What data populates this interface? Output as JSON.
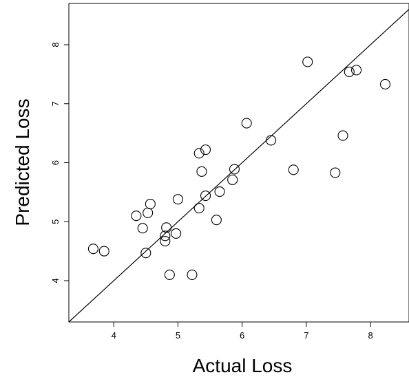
{
  "chart_data": {
    "type": "scatter",
    "title": "",
    "xlabel": "Actual Loss",
    "ylabel": "Predicted Loss",
    "xlim": [
      3.3,
      8.6
    ],
    "ylim": [
      3.3,
      8.7
    ],
    "x_ticks": [
      4,
      5,
      6,
      7,
      8
    ],
    "y_ticks": [
      4,
      5,
      6,
      7,
      8
    ],
    "grid": false,
    "reference_line": {
      "slope": 1,
      "intercept": 0
    },
    "series": [
      {
        "points": [
          {
            "x": 3.68,
            "y": 4.54
          },
          {
            "x": 3.85,
            "y": 4.5
          },
          {
            "x": 4.35,
            "y": 5.1
          },
          {
            "x": 4.45,
            "y": 4.89
          },
          {
            "x": 4.5,
            "y": 4.47
          },
          {
            "x": 4.53,
            "y": 5.15
          },
          {
            "x": 4.57,
            "y": 5.3
          },
          {
            "x": 4.8,
            "y": 4.67
          },
          {
            "x": 4.8,
            "y": 4.76
          },
          {
            "x": 4.82,
            "y": 4.9
          },
          {
            "x": 4.87,
            "y": 4.1
          },
          {
            "x": 4.97,
            "y": 4.8
          },
          {
            "x": 5.0,
            "y": 5.38
          },
          {
            "x": 5.22,
            "y": 4.1
          },
          {
            "x": 5.33,
            "y": 5.23
          },
          {
            "x": 5.33,
            "y": 6.16
          },
          {
            "x": 5.37,
            "y": 5.85
          },
          {
            "x": 5.43,
            "y": 6.22
          },
          {
            "x": 5.43,
            "y": 5.44
          },
          {
            "x": 5.6,
            "y": 5.03
          },
          {
            "x": 5.65,
            "y": 5.51
          },
          {
            "x": 5.85,
            "y": 5.71
          },
          {
            "x": 5.88,
            "y": 5.89
          },
          {
            "x": 6.07,
            "y": 6.67
          },
          {
            "x": 6.45,
            "y": 6.38
          },
          {
            "x": 6.8,
            "y": 5.88
          },
          {
            "x": 7.02,
            "y": 7.71
          },
          {
            "x": 7.45,
            "y": 5.83
          },
          {
            "x": 7.57,
            "y": 6.46
          },
          {
            "x": 7.67,
            "y": 7.54
          },
          {
            "x": 7.78,
            "y": 7.57
          },
          {
            "x": 8.23,
            "y": 7.33
          }
        ]
      }
    ]
  }
}
